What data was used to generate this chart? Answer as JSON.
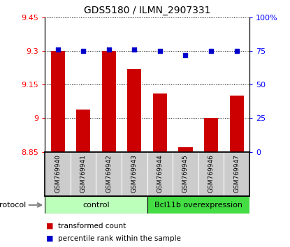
{
  "title": "GDS5180 / ILMN_2907331",
  "samples": [
    "GSM769940",
    "GSM769941",
    "GSM769942",
    "GSM769943",
    "GSM769944",
    "GSM769945",
    "GSM769946",
    "GSM769947"
  ],
  "transformed_count": [
    9.3,
    9.04,
    9.3,
    9.22,
    9.11,
    8.87,
    9.0,
    9.1
  ],
  "percentile_rank": [
    76,
    75,
    76,
    76,
    75,
    72,
    75,
    75
  ],
  "ylim_left": [
    8.85,
    9.45
  ],
  "ylim_right": [
    0,
    100
  ],
  "yticks_left": [
    8.85,
    9.0,
    9.15,
    9.3,
    9.45
  ],
  "yticks_right": [
    0,
    25,
    50,
    75,
    100
  ],
  "ytick_labels_left": [
    "8.85",
    "9",
    "9.15",
    "9.3",
    "9.45"
  ],
  "ytick_labels_right": [
    "0",
    "25",
    "50",
    "75",
    "100%"
  ],
  "groups": [
    {
      "label": "control",
      "indices": [
        0,
        1,
        2,
        3
      ],
      "color": "#bbffbb"
    },
    {
      "label": "Bcl11b overexpression",
      "indices": [
        4,
        5,
        6,
        7
      ],
      "color": "#44dd44"
    }
  ],
  "bar_color": "#cc0000",
  "dot_color": "#0000cc",
  "bar_width": 0.55,
  "bg_color": "#ffffff",
  "tick_label_area_color": "#cccccc",
  "legend_items": [
    {
      "label": "transformed count",
      "color": "#cc0000"
    },
    {
      "label": "percentile rank within the sample",
      "color": "#0000cc"
    }
  ]
}
